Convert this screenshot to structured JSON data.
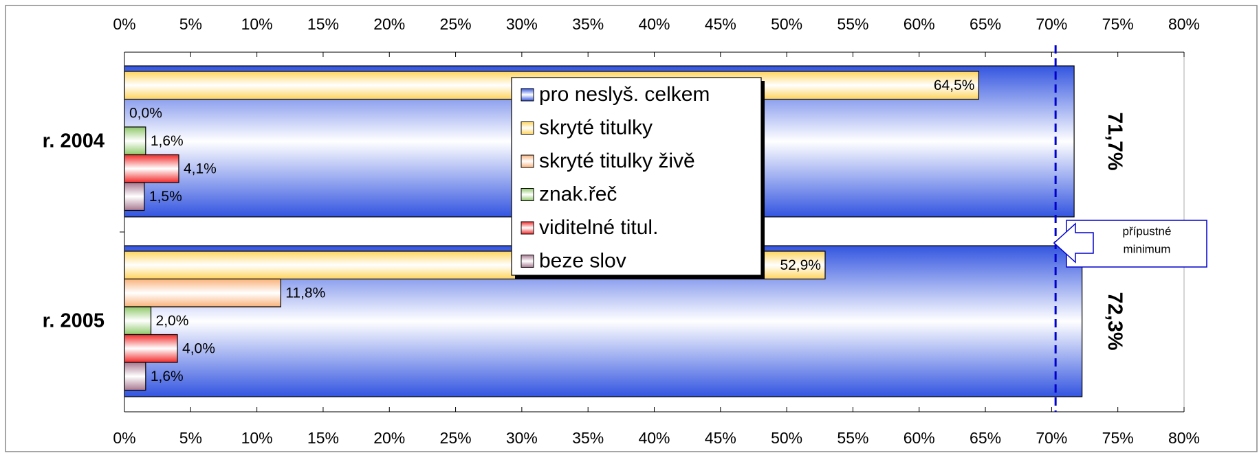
{
  "chart_data": {
    "type": "bar",
    "orientation": "horizontal",
    "categories": [
      "r. 2004",
      "r. 2005"
    ],
    "series": [
      {
        "name": "pro neslyš. celkem",
        "color": "#3355e0",
        "values": [
          71.7,
          72.3
        ],
        "value_labels": [
          "71,7%",
          "72,3%"
        ]
      },
      {
        "name": "skryté titulky",
        "color": "#ffd45c",
        "values": [
          64.5,
          52.9
        ],
        "value_labels": [
          "64,5%",
          "52,9%"
        ]
      },
      {
        "name": "skryté titulky živě",
        "color": "#f9b27a",
        "values": [
          0.0,
          11.8
        ],
        "value_labels": [
          "0,0%",
          "11,8%"
        ]
      },
      {
        "name": "znak.řeč",
        "color": "#8fc86a",
        "values": [
          1.6,
          2.0
        ],
        "value_labels": [
          "1,6%",
          "2,0%"
        ]
      },
      {
        "name": "viditelné titul.",
        "color": "#f22a2a",
        "values": [
          4.1,
          4.0
        ],
        "value_labels": [
          "4,1%",
          "4,0%"
        ]
      },
      {
        "name": "beze slov",
        "color": "#a87890",
        "values": [
          1.5,
          1.6
        ],
        "value_labels": [
          "1,5%",
          "1,6%"
        ]
      }
    ],
    "xlim": [
      0,
      80
    ],
    "xticks": [
      {
        "value": 0,
        "label": "0%"
      },
      {
        "value": 5,
        "label": "5%"
      },
      {
        "value": 10,
        "label": "10%"
      },
      {
        "value": 15,
        "label": "15%"
      },
      {
        "value": 20,
        "label": "20%"
      },
      {
        "value": 25,
        "label": "25%"
      },
      {
        "value": 30,
        "label": "30%"
      },
      {
        "value": 35,
        "label": "35%"
      },
      {
        "value": 40,
        "label": "40%"
      },
      {
        "value": 45,
        "label": "45%"
      },
      {
        "value": 50,
        "label": "50%"
      },
      {
        "value": 55,
        "label": "55%"
      },
      {
        "value": 60,
        "label": "60%"
      },
      {
        "value": 65,
        "label": "65%"
      },
      {
        "value": 70,
        "label": "70%"
      },
      {
        "value": 75,
        "label": "75%"
      },
      {
        "value": 80,
        "label": "80%"
      }
    ],
    "threshold": {
      "value": 70.3,
      "color": "#0000cc",
      "label_lines": [
        "přípustné",
        "minimum"
      ]
    },
    "legend": "center"
  }
}
